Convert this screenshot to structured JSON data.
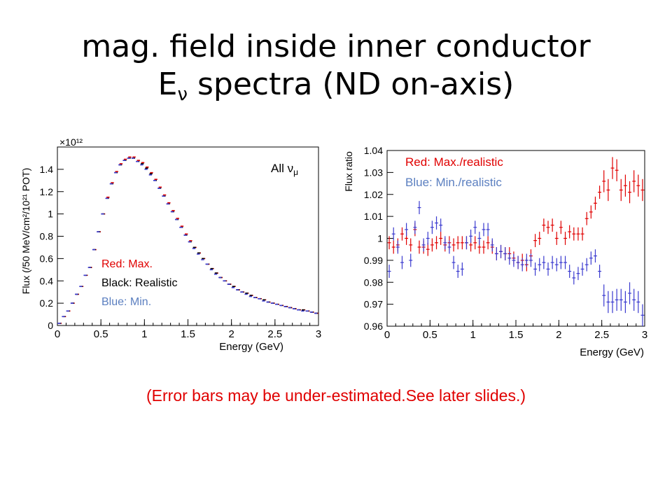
{
  "slide": {
    "title_line1": "mag. field inside inner conductor",
    "title_line2_main": "E",
    "title_line2_sub": "ν",
    "title_line2_rest": " spectra (ND on-axis)",
    "note": "(Error bars may be under-estimated.See later slides.)"
  },
  "colors": {
    "red": "#e00000",
    "black": "#000000",
    "blue": "#3a3acf",
    "blue_text": "#5b7fc0",
    "note": "#e00000"
  },
  "chart_data": [
    {
      "type": "scatter",
      "ylabel": "Flux (/50 MeV/cm²/10²¹ POT)",
      "xlabel": "Energy (GeV)",
      "multiplier": "×10¹²",
      "xlim": [
        0,
        3
      ],
      "ylim": [
        0,
        1.6
      ],
      "xticks": [
        "0",
        "0.5",
        "1",
        "1.5",
        "2",
        "2.5",
        "3"
      ],
      "yticks": [
        "0",
        "0.2",
        "0.4",
        "0.6",
        "0.8",
        "1",
        "1.2",
        "1.4"
      ],
      "annotation": "All ν",
      "annotation_sub": "μ",
      "legend": [
        "Red: Max.",
        "Black: Realistic",
        "Blue: Min."
      ],
      "x": [
        0.025,
        0.075,
        0.125,
        0.175,
        0.225,
        0.275,
        0.325,
        0.375,
        0.425,
        0.475,
        0.525,
        0.575,
        0.625,
        0.675,
        0.725,
        0.775,
        0.825,
        0.875,
        0.925,
        0.975,
        1.025,
        1.075,
        1.125,
        1.175,
        1.225,
        1.275,
        1.325,
        1.375,
        1.425,
        1.475,
        1.525,
        1.575,
        1.625,
        1.675,
        1.725,
        1.775,
        1.825,
        1.875,
        1.925,
        1.975,
        2.025,
        2.075,
        2.125,
        2.175,
        2.225,
        2.275,
        2.325,
        2.375,
        2.425,
        2.475,
        2.525,
        2.575,
        2.625,
        2.675,
        2.725,
        2.775,
        2.825,
        2.875,
        2.925,
        2.975
      ],
      "series": [
        {
          "name": "Red: Max.",
          "values": [
            0.02,
            0.08,
            0.13,
            0.2,
            0.28,
            0.35,
            0.45,
            0.52,
            0.68,
            0.84,
            1.0,
            1.15,
            1.28,
            1.38,
            1.45,
            1.49,
            1.51,
            1.51,
            1.48,
            1.46,
            1.42,
            1.37,
            1.31,
            1.24,
            1.17,
            1.1,
            1.03,
            0.96,
            0.89,
            0.82,
            0.76,
            0.7,
            0.65,
            0.6,
            0.55,
            0.51,
            0.47,
            0.43,
            0.4,
            0.37,
            0.35,
            0.32,
            0.3,
            0.29,
            0.27,
            0.25,
            0.24,
            0.23,
            0.21,
            0.2,
            0.19,
            0.18,
            0.17,
            0.16,
            0.15,
            0.14,
            0.14,
            0.13,
            0.12,
            0.11
          ]
        },
        {
          "name": "Black: Realistic",
          "values": [
            0.02,
            0.08,
            0.13,
            0.2,
            0.28,
            0.35,
            0.45,
            0.52,
            0.68,
            0.84,
            1.0,
            1.14,
            1.27,
            1.37,
            1.44,
            1.48,
            1.5,
            1.5,
            1.47,
            1.45,
            1.41,
            1.36,
            1.3,
            1.23,
            1.16,
            1.09,
            1.02,
            0.95,
            0.88,
            0.81,
            0.75,
            0.7,
            0.65,
            0.6,
            0.55,
            0.51,
            0.47,
            0.43,
            0.4,
            0.37,
            0.35,
            0.32,
            0.3,
            0.29,
            0.27,
            0.25,
            0.24,
            0.23,
            0.21,
            0.2,
            0.19,
            0.18,
            0.17,
            0.16,
            0.15,
            0.14,
            0.14,
            0.13,
            0.12,
            0.11
          ]
        },
        {
          "name": "Blue: Min.",
          "values": [
            0.02,
            0.08,
            0.13,
            0.2,
            0.28,
            0.35,
            0.45,
            0.52,
            0.68,
            0.84,
            1.0,
            1.14,
            1.27,
            1.37,
            1.44,
            1.48,
            1.5,
            1.5,
            1.47,
            1.44,
            1.4,
            1.35,
            1.3,
            1.23,
            1.16,
            1.09,
            1.02,
            0.95,
            0.88,
            0.81,
            0.75,
            0.69,
            0.64,
            0.59,
            0.55,
            0.5,
            0.46,
            0.43,
            0.4,
            0.37,
            0.34,
            0.32,
            0.3,
            0.28,
            0.26,
            0.25,
            0.24,
            0.22,
            0.21,
            0.2,
            0.19,
            0.18,
            0.17,
            0.16,
            0.15,
            0.14,
            0.13,
            0.13,
            0.12,
            0.11
          ]
        }
      ]
    },
    {
      "type": "scatter",
      "ylabel": "Flux ratio",
      "xlabel": "Energy (GeV)",
      "xlim": [
        0,
        3
      ],
      "ylim": [
        0.96,
        1.04
      ],
      "xticks": [
        "0",
        "0.5",
        "1",
        "1.5",
        "2",
        "2.5",
        "3"
      ],
      "yticks": [
        "0.96",
        "0.97",
        "0.98",
        "0.99",
        "1",
        "1.01",
        "1.02",
        "1.03",
        "1.04"
      ],
      "legend": [
        "Red: Max./realistic",
        "Blue: Min./realistic"
      ],
      "x": [
        0.025,
        0.075,
        0.125,
        0.175,
        0.225,
        0.275,
        0.325,
        0.375,
        0.425,
        0.475,
        0.525,
        0.575,
        0.625,
        0.675,
        0.725,
        0.775,
        0.825,
        0.875,
        0.925,
        0.975,
        1.025,
        1.075,
        1.125,
        1.175,
        1.225,
        1.275,
        1.325,
        1.375,
        1.425,
        1.475,
        1.525,
        1.575,
        1.625,
        1.675,
        1.725,
        1.775,
        1.825,
        1.875,
        1.925,
        1.975,
        2.025,
        2.075,
        2.125,
        2.175,
        2.225,
        2.275,
        2.325,
        2.375,
        2.425,
        2.475,
        2.525,
        2.575,
        2.625,
        2.675,
        2.725,
        2.775,
        2.825,
        2.875,
        2.925,
        2.975
      ],
      "series": [
        {
          "name": "Red: Max./realistic",
          "values": [
            0.998,
            0.996,
            0.997,
            1.002,
            1.0,
            0.997,
            1.004,
            0.996,
            0.996,
            0.995,
            0.997,
            0.998,
            1.0,
            0.997,
            0.998,
            0.997,
            0.998,
            0.998,
            0.998,
            0.997,
            0.998,
            0.996,
            0.996,
            0.998,
            0.996,
            0.993,
            0.994,
            0.993,
            0.993,
            0.991,
            0.989,
            0.99,
            0.988,
            0.992,
            0.999,
            1.0,
            1.006,
            1.005,
            1.006,
            1.0,
            1.005,
            1.0,
            1.003,
            1.002,
            1.002,
            1.002,
            1.009,
            1.012,
            1.016,
            1.021,
            1.026,
            1.022,
            1.032,
            1.031,
            1.022,
            1.024,
            1.021,
            1.026,
            1.024,
            1.022
          ]
        },
        {
          "name": "Blue: Min./realistic",
          "values": [
            0.985,
            1.002,
            0.996,
            0.989,
            1.004,
            0.99,
            1.005,
            1.014,
            0.997,
            1.0,
            1.005,
            1.007,
            1.006,
            0.998,
            0.996,
            0.989,
            0.985,
            0.986,
            0.998,
            1.001,
            1.005,
            1.0,
            1.004,
            1.004,
            0.997,
            0.993,
            0.994,
            0.993,
            0.991,
            0.99,
            0.989,
            0.988,
            0.99,
            0.99,
            0.986,
            0.988,
            0.989,
            0.986,
            0.989,
            0.988,
            0.989,
            0.989,
            0.985,
            0.982,
            0.984,
            0.986,
            0.988,
            0.991,
            0.992,
            0.985,
            0.974,
            0.971,
            0.971,
            0.972,
            0.972,
            0.971,
            0.975,
            0.972,
            0.971,
            0.965
          ]
        }
      ]
    }
  ]
}
